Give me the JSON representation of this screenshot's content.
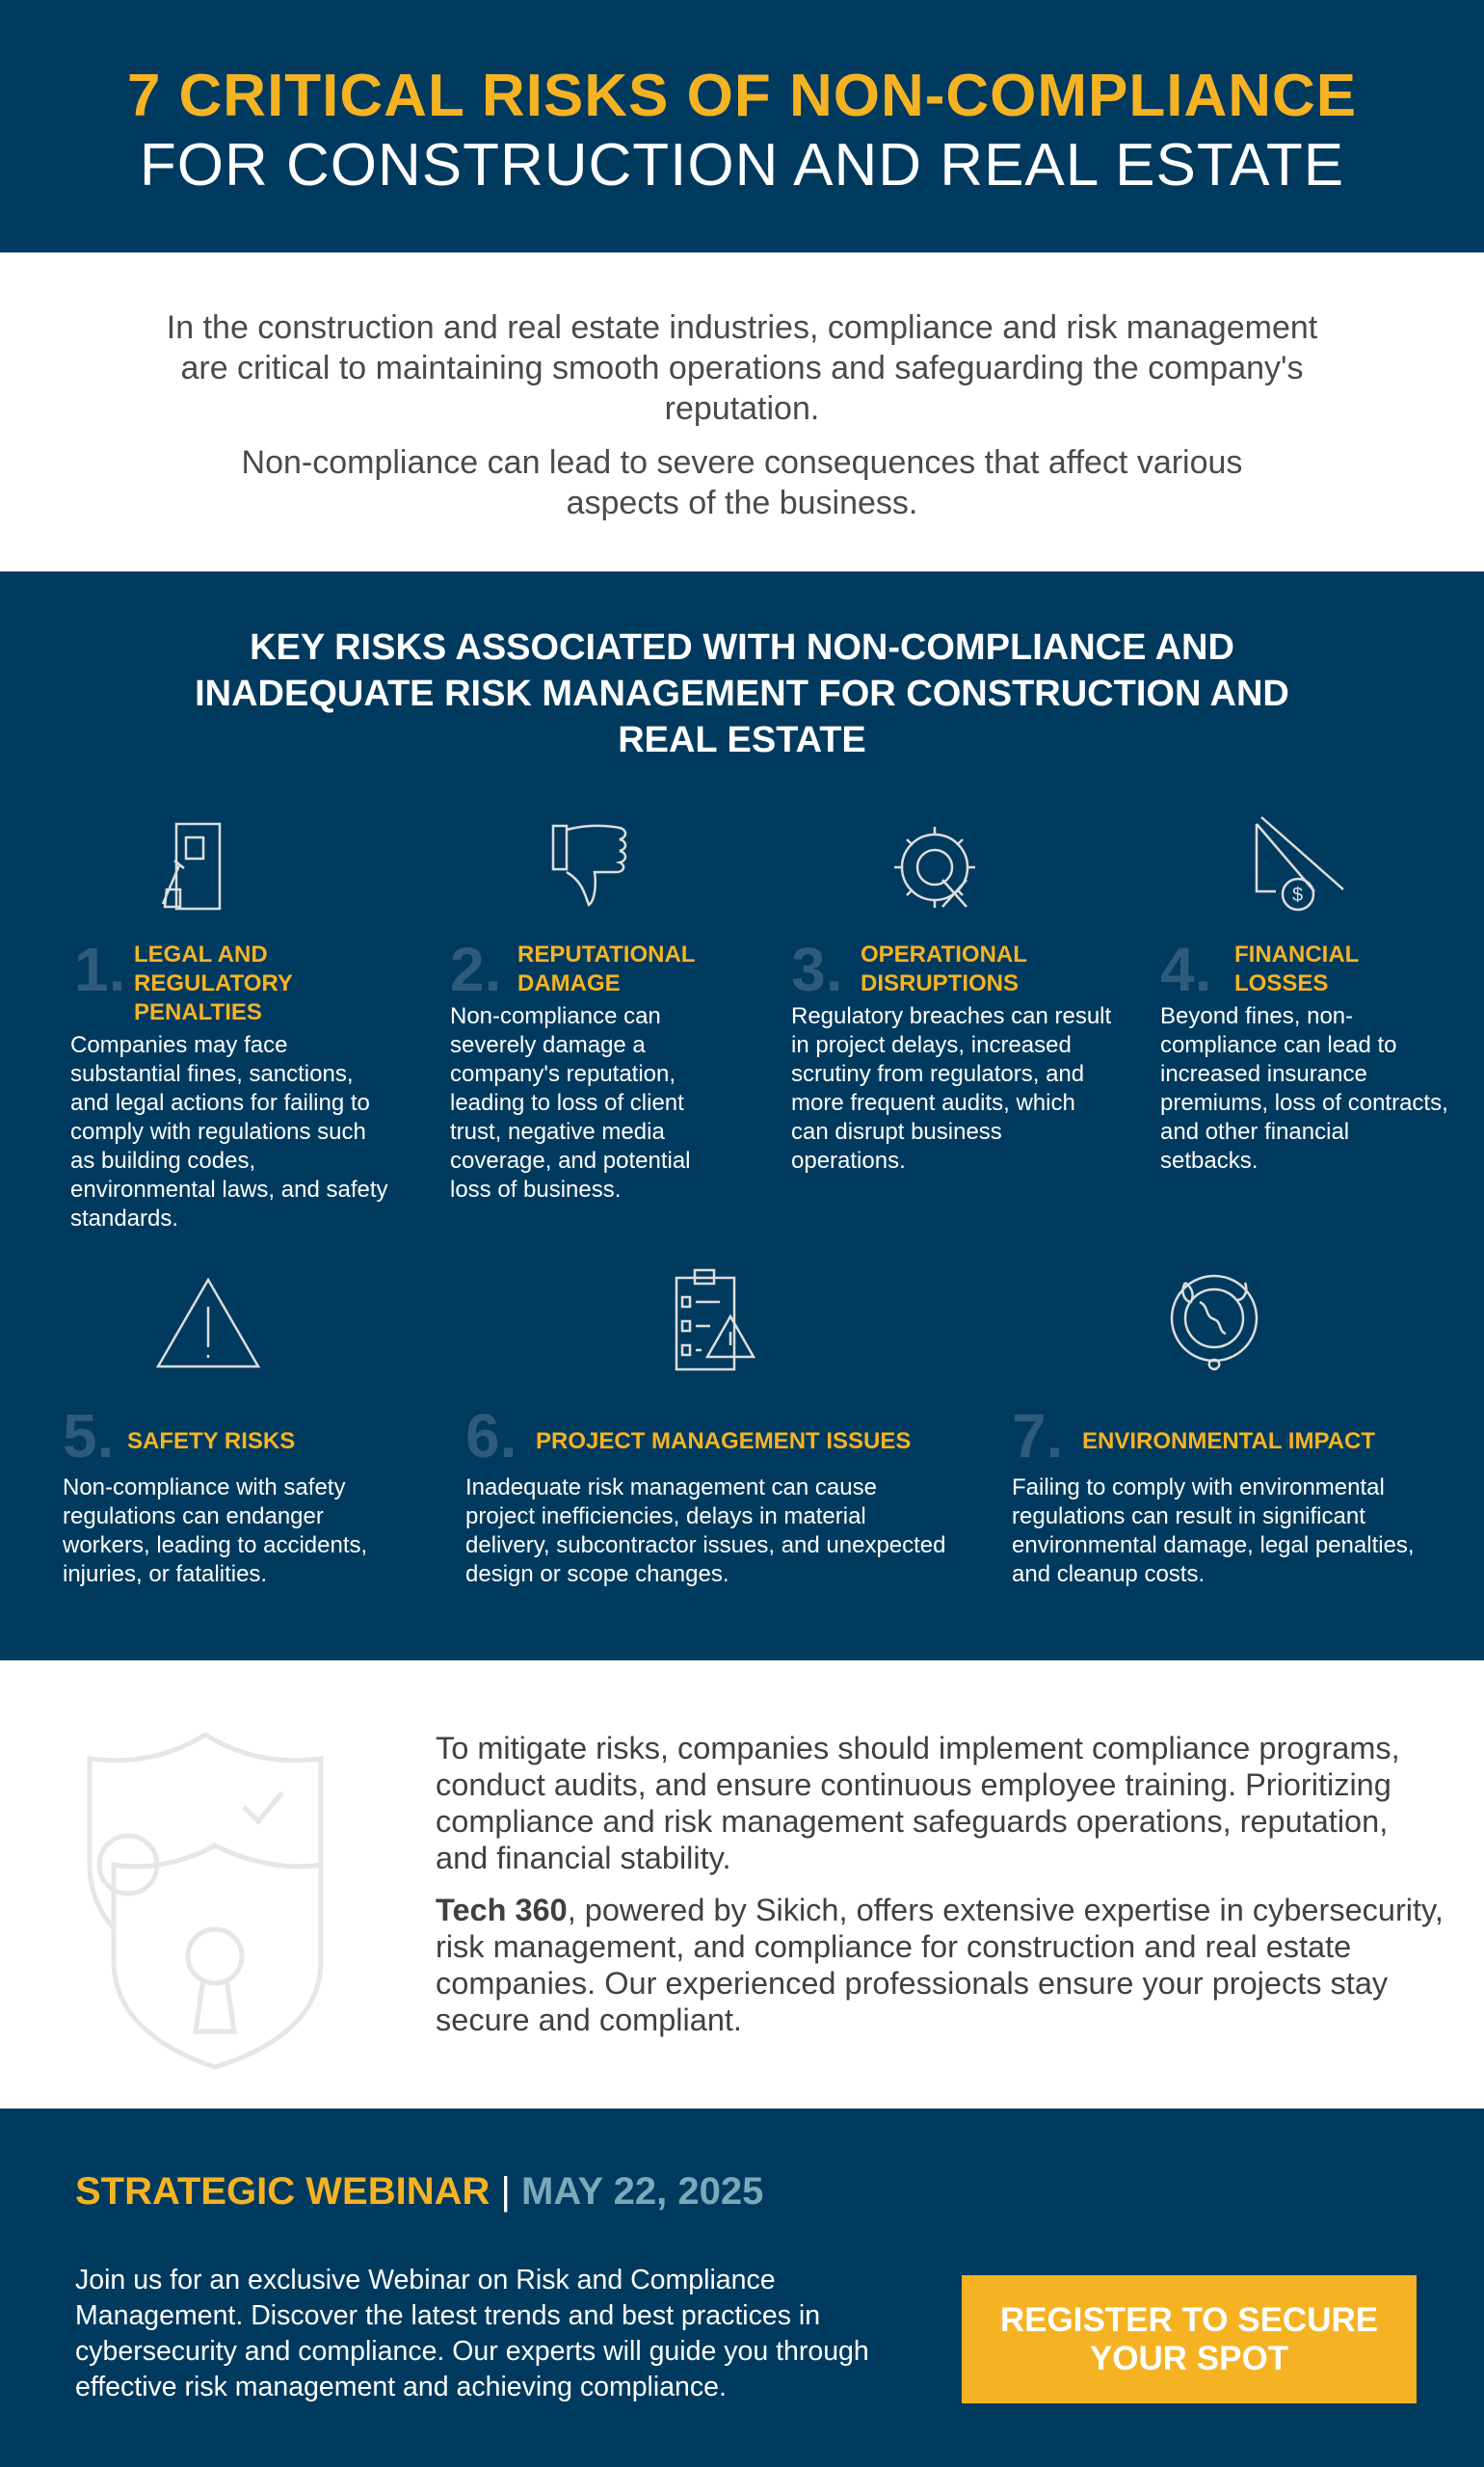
{
  "header": {
    "title_line1": "7 CRITICAL RISKS OF NON-COMPLIANCE",
    "title_line2": "FOR CONSTRUCTION AND REAL ESTATE"
  },
  "intro": {
    "p1": "In the construction and real estate industries, compliance and risk management are critical to maintaining smooth operations and safeguarding the company's reputation.",
    "p2": "Non-compliance can lead to severe consequences that affect various aspects of the business."
  },
  "risks": {
    "heading": "KEY RISKS ASSOCIATED WITH NON-COMPLIANCE AND INADEQUATE RISK MANAGEMENT FOR CONSTRUCTION AND REAL ESTATE",
    "items": [
      {
        "num": "1.",
        "title": "LEGAL AND REGULATORY PENALTIES",
        "icon": "gavel-document-icon",
        "body": "Companies may face substantial fines, sanctions, and legal actions for failing to comply with regulations such as building codes, environmental laws, and safety standards."
      },
      {
        "num": "2.",
        "title": "REPUTATIONAL DAMAGE",
        "icon": "thumbs-down-icon",
        "body": "Non-compliance can severely damage a company's reputation, leading to loss of client trust, negative media coverage, and potential loss of business."
      },
      {
        "num": "3.",
        "title": "OPERATIONAL DISRUPTIONS",
        "icon": "broken-gear-icon",
        "body": "Regulatory breaches can result in project delays, increased scrutiny from regulators, and more frequent audits, which can disrupt business operations."
      },
      {
        "num": "4.",
        "title": "FINANCIAL LOSSES",
        "icon": "declining-money-icon",
        "body": "Beyond fines, non-compliance can lead to increased insurance premiums, loss of contracts, and other financial setbacks."
      },
      {
        "num": "5.",
        "title": "SAFETY RISKS",
        "icon": "warning-triangle-icon",
        "body": "Non-compliance with safety regulations can endanger workers, leading to accidents, injuries, or fatalities."
      },
      {
        "num": "6.",
        "title": "PROJECT MANAGEMENT ISSUES",
        "icon": "checklist-warning-icon",
        "body": "Inadequate risk management can cause project inefficiencies, delays in material delivery, subcontractor issues, and unexpected design or scope changes."
      },
      {
        "num": "7.",
        "title": "ENVIRONMENTAL IMPACT",
        "icon": "globe-leaves-icon",
        "body": "Failing to comply with environmental regulations can result in significant environmental damage, legal penalties, and cleanup costs."
      }
    ]
  },
  "mitigation": {
    "p1": "To mitigate risks, companies should implement compliance programs, conduct audits, and ensure continuous employee training. Prioritizing compliance and risk management safeguards operations, reputation, and financial stability.",
    "p2_bold": "Tech 360",
    "p2_rest": ", powered by Sikich, offers extensive expertise in cybersecurity, risk management, and compliance for construction and real estate companies. Our experienced professionals ensure your projects stay secure and compliant.",
    "icon": "shield-lock-icon"
  },
  "footer": {
    "webinar_label": "STRATEGIC WEBINAR",
    "separator": "|",
    "date": "MAY 22, 2025",
    "body": "Join us for an exclusive Webinar on Risk and Compliance Management. Discover the latest trends and best practices in cybersecurity and compliance. Our experts will guide you through effective risk management and achieving compliance.",
    "button_label": "REGISTER TO SECURE YOUR SPOT"
  },
  "colors": {
    "navy": "#003a5e",
    "accent": "#f5b324",
    "number": "#2e5a7c",
    "date": "#7aa9ba"
  }
}
